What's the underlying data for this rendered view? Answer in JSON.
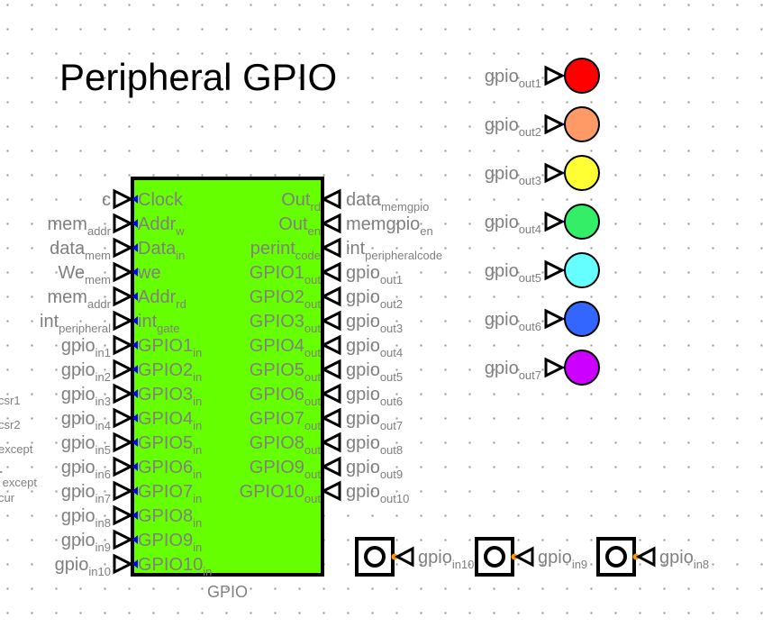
{
  "title": "Peripheral  GPIO",
  "component": {
    "name": "GPIO",
    "fill": "#66ff00",
    "inputs": [
      {
        "label": "Clock",
        "sub": ""
      },
      {
        "label": "Addr",
        "sub": "w"
      },
      {
        "label": "Data",
        "sub": "in"
      },
      {
        "label": "we",
        "sub": ""
      },
      {
        "label": "Addr",
        "sub": "rd"
      },
      {
        "label": "int",
        "sub": "gate"
      },
      {
        "label": "GPIO1",
        "sub": "in"
      },
      {
        "label": "GPIO2",
        "sub": "in"
      },
      {
        "label": "GPIO3",
        "sub": "in"
      },
      {
        "label": "GPIO4",
        "sub": "in"
      },
      {
        "label": "GPIO5",
        "sub": "in"
      },
      {
        "label": "GPIO6",
        "sub": "in"
      },
      {
        "label": "GPIO7",
        "sub": "in"
      },
      {
        "label": "GPIO8",
        "sub": "in"
      },
      {
        "label": "GPIO9",
        "sub": "in"
      },
      {
        "label": "GPIO10",
        "sub": "in"
      }
    ],
    "outputs": [
      {
        "label": "Out",
        "sub": "rd"
      },
      {
        "label": "Out",
        "sub": "en"
      },
      {
        "label": "perint",
        "sub": "code"
      },
      {
        "label": "GPIO1",
        "sub": "out"
      },
      {
        "label": "GPIO2",
        "sub": "out"
      },
      {
        "label": "GPIO3",
        "sub": "out"
      },
      {
        "label": "GPIO4",
        "sub": "out"
      },
      {
        "label": "GPIO5",
        "sub": "out"
      },
      {
        "label": "GPIO6",
        "sub": "out"
      },
      {
        "label": "GPIO7",
        "sub": "out"
      },
      {
        "label": "GPIO8",
        "sub": "out"
      },
      {
        "label": "GPIO9",
        "sub": "out"
      },
      {
        "label": "GPIO10",
        "sub": "out"
      }
    ]
  },
  "left_tunnels": [
    {
      "label": "c",
      "sub": ""
    },
    {
      "label": "mem",
      "sub": "addr"
    },
    {
      "label": "data",
      "sub": "mem"
    },
    {
      "label": "We",
      "sub": "mem"
    },
    {
      "label": "mem",
      "sub": "addr"
    },
    {
      "label": "int",
      "sub": "peripheral"
    },
    {
      "label": "gpio",
      "sub": "in1"
    },
    {
      "label": "gpio",
      "sub": "in2"
    },
    {
      "label": "gpio",
      "sub": "in3"
    },
    {
      "label": "gpio",
      "sub": "in4"
    },
    {
      "label": "gpio",
      "sub": "in5"
    },
    {
      "label": "gpio",
      "sub": "in6"
    },
    {
      "label": "gpio",
      "sub": "in7"
    },
    {
      "label": "gpio",
      "sub": "in8"
    },
    {
      "label": "gpio",
      "sub": "in9"
    },
    {
      "label": "gpio",
      "sub": "in10"
    }
  ],
  "right_tunnels": [
    {
      "label": "data",
      "sub": "memgpio"
    },
    {
      "label": "memgpio",
      "sub": "en"
    },
    {
      "label": "int",
      "sub": "peripheralcode"
    },
    {
      "label": "gpio",
      "sub": "out1"
    },
    {
      "label": "gpio",
      "sub": "out2"
    },
    {
      "label": "gpio",
      "sub": "out3"
    },
    {
      "label": "gpio",
      "sub": "out4"
    },
    {
      "label": "gpio",
      "sub": "out5"
    },
    {
      "label": "gpio",
      "sub": "out6"
    },
    {
      "label": "gpio",
      "sub": "out7"
    },
    {
      "label": "gpio",
      "sub": "out8"
    },
    {
      "label": "gpio",
      "sub": "out9"
    },
    {
      "label": "gpio",
      "sub": "out10"
    }
  ],
  "clipped_labels": [
    {
      "label": "csr1",
      "big": false
    },
    {
      "label": "csr2",
      "big": false
    },
    {
      "label": "except",
      "big": false
    },
    {
      "label": "r",
      "sub": "except",
      "big": true
    },
    {
      "label": "cur",
      "big": false
    }
  ],
  "leds": [
    {
      "label": "gpio",
      "sub": "out1",
      "color": "#ff0000"
    },
    {
      "label": "gpio",
      "sub": "out2",
      "color": "#ff9966"
    },
    {
      "label": "gpio",
      "sub": "out3",
      "color": "#ffff33"
    },
    {
      "label": "gpio",
      "sub": "out4",
      "color": "#33ee66"
    },
    {
      "label": "gpio",
      "sub": "out5",
      "color": "#66ffff"
    },
    {
      "label": "gpio",
      "sub": "out6",
      "color": "#3366ff"
    },
    {
      "label": "gpio",
      "sub": "out7",
      "color": "#cc00ff"
    }
  ],
  "buttons": [
    {
      "label": "gpio",
      "sub": "in10"
    },
    {
      "label": "gpio",
      "sub": "in9"
    },
    {
      "label": "gpio",
      "sub": "in8"
    }
  ]
}
